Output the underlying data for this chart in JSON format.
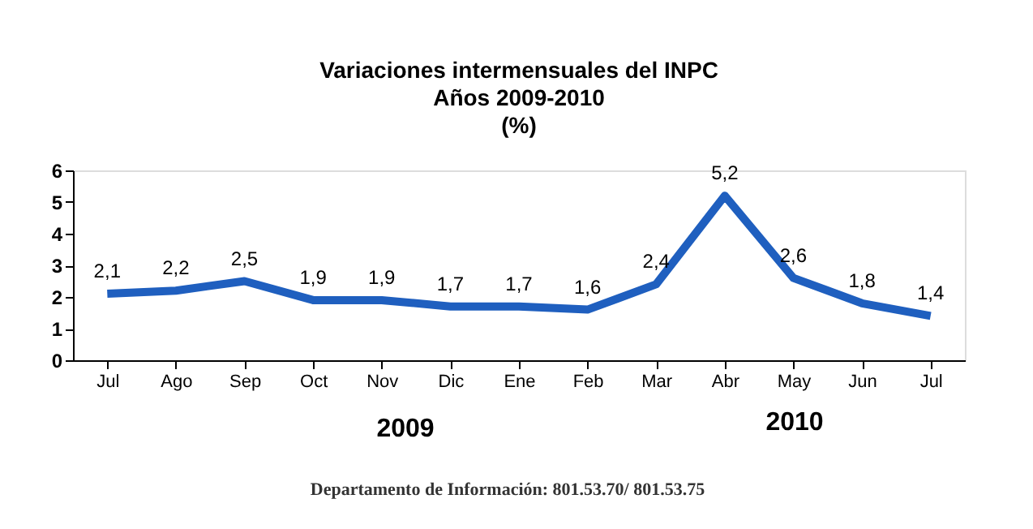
{
  "chart_data": {
    "type": "line",
    "title": "Variaciones intermensuales del INPC\nAños 2009-2010\n(%)",
    "categories": [
      "Jul",
      "Ago",
      "Sep",
      "Oct",
      "Nov",
      "Dic",
      "Ene",
      "Feb",
      "Mar",
      "Abr",
      "May",
      "Jun",
      "Jul"
    ],
    "values": [
      2.1,
      2.2,
      2.5,
      1.9,
      1.9,
      1.7,
      1.7,
      1.6,
      2.4,
      5.2,
      2.6,
      1.8,
      1.4
    ],
    "color": "#1f5fbf",
    "ylim": [
      0,
      6
    ],
    "yticks": [
      0,
      1,
      2,
      3,
      4,
      5,
      6
    ],
    "grid": false,
    "legend": false,
    "marker": "none",
    "line_style": "solid",
    "value_labels": [
      "2,1",
      "2,2",
      "2,5",
      "1,9",
      "1,9",
      "1,7",
      "1,7",
      "1,6",
      "2,4",
      "5,2",
      "2,6",
      "1,8",
      "1,4"
    ],
    "annotations": [
      "2009",
      "2010",
      "Departamento de Información: 801.53.70/ 801.53.75"
    ]
  }
}
